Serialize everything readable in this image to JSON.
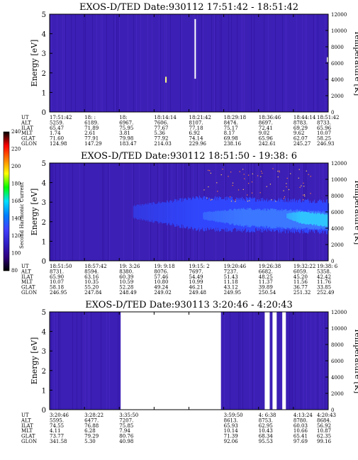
{
  "chart_data": [
    {
      "type": "heatmap",
      "title": "EXOS-D/TED   Date:930112   17:51:42 - 18:51:42",
      "ylabel": "Energy [eV]",
      "y2label": "Temperature [K]",
      "ylim": [
        0,
        5
      ],
      "yticks": [
        "0",
        "1",
        "2",
        "3",
        "4",
        "5"
      ],
      "y2lim": [
        0,
        12000
      ],
      "y2ticks": [
        "0",
        "2000",
        "4000",
        "6000",
        "8000",
        "10000",
        "12000"
      ],
      "gaps": [],
      "white_streaks": [
        [
          0.52,
          0.05,
          0.66
        ]
      ],
      "blobs": [],
      "table_labels": [
        "UT",
        "ALT",
        "ILAT",
        "MLT",
        "GLAT",
        "GLON"
      ],
      "table": [
        [
          "17:51:42",
          "18:  :  ",
          "18:",
          "18:14:14",
          "18:21:42",
          "18:29:18",
          "18:36:46",
          "18:44:14",
          "18:51:42"
        ],
        [
          "5259.",
          "6189.",
          "6967.",
          "7606.",
          "8107.",
          "8474.",
          "8697.",
          "8783.",
          "8733."
        ],
        [
          "65.47",
          "71.89",
          "75.95",
          "77.67",
          "77.18",
          "75.17",
          "72.41",
          "69.29",
          "65.96"
        ],
        [
          "1.74",
          "2.61",
          "3.81",
          "5.36",
          "6.92",
          "8.17",
          "9.02",
          "9.62",
          "10.07"
        ],
        [
          "71.60",
          "77.91",
          "79.98",
          "77.92",
          "74.14",
          "69.98",
          "65.96",
          "62.07",
          "58.25"
        ],
        [
          "124.98",
          "147.29",
          "183.47",
          "214.03",
          "229.96",
          "238.16",
          "242.61",
          "245.27",
          "246.93"
        ]
      ]
    },
    {
      "type": "heatmap",
      "title": "EXOS-D/TED   Date:930112   18:51:50 - 19:38: 6",
      "ylabel": "Energy [eV]",
      "y2label": "Temperature [K]",
      "ylim": [
        0,
        5
      ],
      "yticks": [
        "0",
        "1",
        "2",
        "3",
        "4",
        "5"
      ],
      "y2lim": [
        0,
        12000
      ],
      "y2ticks": [
        "0",
        "2000",
        "4000",
        "6000",
        "8000",
        "10000",
        "12000"
      ],
      "gaps": [],
      "white_streaks": [],
      "blobs": [
        {
          "x0": 0.3,
          "x1": 1.0,
          "ycenter": 2.5,
          "half_width": 0.8,
          "level": "blue"
        },
        {
          "x0": 0.55,
          "x1": 1.0,
          "ycenter": 2.3,
          "half_width": 0.45,
          "level": "light-blue"
        },
        {
          "x0": 0.85,
          "x1": 1.0,
          "ycenter": 2.3,
          "half_width": 0.3,
          "level": "cyan"
        }
      ],
      "table_labels": [
        "UT",
        "ALT",
        "ILAT",
        "MLT",
        "GLAT",
        "GLON"
      ],
      "table": [
        [
          "18:51:50",
          "18:57:42",
          "19: 3:26",
          "19: 9:18",
          "19:15: 2",
          "19:20:46",
          "19:26:38",
          "19:32:22",
          "19:38: 6"
        ],
        [
          "8731.",
          "8594.",
          "8380.",
          "8076.",
          "7697.",
          "7237.",
          "6682.",
          "6059.",
          "5358."
        ],
        [
          "65.90",
          "63.16",
          "60.39",
          "57.46",
          "54.49",
          "51.43",
          "48.25",
          "45.20",
          "42.42"
        ],
        [
          "10.07",
          "10.35",
          "10.59",
          "10.80",
          "10.99",
          "11.18",
          "11.37",
          "11.56",
          "11.76"
        ],
        [
          "58.18",
          "55.20",
          "52.28",
          "49.24",
          "46.21",
          "43.12",
          "39.89",
          "36.77",
          "33.85"
        ],
        [
          "246.95",
          "247.84",
          "248.49",
          "249.02",
          "249.48",
          "249.95",
          "250.54",
          "251.32",
          "252.49"
        ]
      ]
    },
    {
      "type": "heatmap",
      "title": "EXOS-D/TED   Date:930113   3:20:46 - 4:20:43",
      "ylabel": "Energy [eV]",
      "y2label": "Temperature [K]",
      "ylim": [
        0,
        5
      ],
      "yticks": [
        "0",
        "1",
        "2",
        "3",
        "4",
        "5"
      ],
      "y2lim": [
        0,
        12000
      ],
      "y2ticks": [
        "0",
        "2000",
        "4000",
        "6000",
        "8000",
        "10000",
        "12000"
      ],
      "gaps": [
        [
          0.255,
          0.615
        ],
        [
          0.772,
          0.79
        ],
        [
          0.8,
          0.815
        ],
        [
          0.835,
          0.848
        ]
      ],
      "white_streaks": [],
      "blobs": [],
      "table_labels": [
        "UT",
        "ALT",
        "ILAT",
        "MLT",
        "GLAT",
        "GLON"
      ],
      "table": [
        [
          "3:20:46",
          "3:28:22",
          "3:35:50",
          "",
          "",
          "3:59:50",
          "4: 6:38",
          "4:13:24",
          "4:20:43"
        ],
        [
          "5595.",
          "6477.",
          "7207.",
          "",
          "",
          "8613.",
          "8753.",
          "8780.",
          "8684."
        ],
        [
          "74.55",
          "76.88",
          "75.85",
          "",
          "",
          "65.93",
          "62.95",
          "60.03",
          "56.92"
        ],
        [
          "4.11",
          "6.28",
          "7.94",
          "",
          "",
          "10.14",
          "10.43",
          "10.66",
          "10.87"
        ],
        [
          "73.77",
          "79.29",
          "80.76",
          "",
          "",
          "71.39",
          "68.34",
          "65.41",
          "62.35"
        ],
        [
          "341.58",
          "5.30",
          "40.98",
          "",
          "",
          "92.06",
          "95.53",
          "97.69",
          "99.16"
        ]
      ]
    }
  ],
  "colorbar": {
    "label": "Second Harmonic Current",
    "ticks": [
      "80",
      "100",
      "120",
      "140",
      "160",
      "180",
      "200",
      "220",
      "240"
    ],
    "colors": [
      "#000000",
      "#ff0000",
      "#ff7f00",
      "#ffff00",
      "#00ff00",
      "#00e0ff",
      "#0080ff",
      "#4040ff",
      "#3020c8",
      "#300080",
      "#000000"
    ]
  }
}
